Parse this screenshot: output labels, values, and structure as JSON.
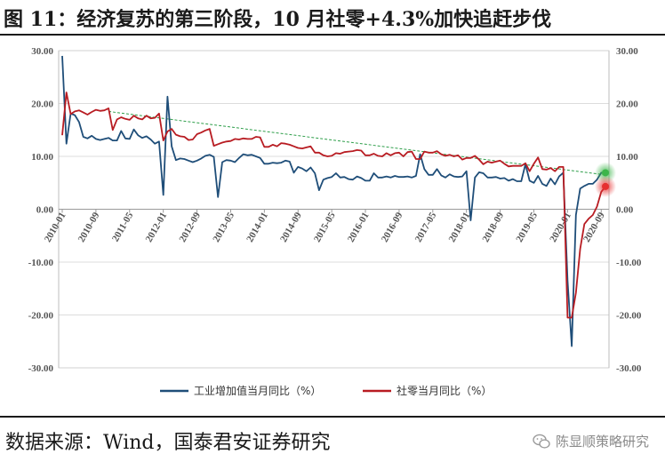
{
  "title": "图 11：经济复苏的第三阶段，10 月社零+4.3%加快追赶步伐",
  "source": "数据来源：Wind，国泰君安证券研究",
  "watermark": "陈显顺策略研究",
  "watermark_icon": "wechat-icon",
  "chart_data": {
    "type": "line",
    "ylim": [
      -30,
      30
    ],
    "yticks": [
      "30.00",
      "20.00",
      "10.00",
      "0.00",
      "-10.00",
      "-20.00",
      "-30.00"
    ],
    "right_yticks": [
      "30.00",
      "20.00",
      "10.00",
      "0.00",
      "-10.00",
      "-20.00",
      "-30.00"
    ],
    "xtick_labels": [
      "2010-01",
      "2010-09",
      "2011-05",
      "2012-01",
      "2012-09",
      "2013-05",
      "2014-01",
      "2014-09",
      "2015-05",
      "2016-01",
      "2016-09",
      "2017-05",
      "2018-01",
      "2018-09",
      "2019-05",
      "2020-01",
      "2020-09"
    ],
    "legend_position": "bottom",
    "trend_line": {
      "from": [
        "2010-12",
        18.5
      ],
      "to": [
        "2020-10",
        6.5
      ],
      "color": "#2e9e4a",
      "style": "dashed"
    },
    "highlights": [
      {
        "series": 0,
        "x": "2020-10",
        "y": 6.9,
        "color": "#3cb54a"
      },
      {
        "series": 1,
        "x": "2020-10",
        "y": 4.3,
        "color": "#e63030"
      }
    ],
    "series": [
      {
        "name": "工业增加值当月同比（%）",
        "color": "#1f4e79",
        "values": [
          [
            "2010-01",
            29.0
          ],
          [
            "2010-02",
            12.4
          ],
          [
            "2010-03",
            18.1
          ],
          [
            "2010-04",
            17.8
          ],
          [
            "2010-05",
            16.5
          ],
          [
            "2010-06",
            13.7
          ],
          [
            "2010-07",
            13.4
          ],
          [
            "2010-08",
            13.9
          ],
          [
            "2010-09",
            13.3
          ],
          [
            "2010-10",
            13.1
          ],
          [
            "2010-11",
            13.3
          ],
          [
            "2010-12",
            13.5
          ],
          [
            "2011-01",
            13.0
          ],
          [
            "2011-02",
            13.0
          ],
          [
            "2011-03",
            14.8
          ],
          [
            "2011-04",
            13.4
          ],
          [
            "2011-05",
            13.3
          ],
          [
            "2011-06",
            15.1
          ],
          [
            "2011-07",
            14.0
          ],
          [
            "2011-08",
            13.5
          ],
          [
            "2011-09",
            13.8
          ],
          [
            "2011-10",
            13.2
          ],
          [
            "2011-11",
            12.4
          ],
          [
            "2011-12",
            12.8
          ],
          [
            "2012-01",
            2.7
          ],
          [
            "2012-02",
            21.3
          ],
          [
            "2012-03",
            11.9
          ],
          [
            "2012-04",
            9.3
          ],
          [
            "2012-05",
            9.6
          ],
          [
            "2012-06",
            9.5
          ],
          [
            "2012-07",
            9.2
          ],
          [
            "2012-08",
            8.9
          ],
          [
            "2012-09",
            9.2
          ],
          [
            "2012-10",
            9.6
          ],
          [
            "2012-11",
            10.1
          ],
          [
            "2012-12",
            10.3
          ],
          [
            "2013-01",
            9.9
          ],
          [
            "2013-02",
            2.3
          ],
          [
            "2013-03",
            8.9
          ],
          [
            "2013-04",
            9.3
          ],
          [
            "2013-05",
            9.2
          ],
          [
            "2013-06",
            8.9
          ],
          [
            "2013-07",
            9.7
          ],
          [
            "2013-08",
            10.4
          ],
          [
            "2013-09",
            10.2
          ],
          [
            "2013-10",
            10.3
          ],
          [
            "2013-11",
            10.0
          ],
          [
            "2013-12",
            9.7
          ],
          [
            "2014-01",
            8.6
          ],
          [
            "2014-02",
            8.6
          ],
          [
            "2014-03",
            8.8
          ],
          [
            "2014-04",
            8.7
          ],
          [
            "2014-05",
            8.8
          ],
          [
            "2014-06",
            9.2
          ],
          [
            "2014-07",
            9.0
          ],
          [
            "2014-08",
            6.9
          ],
          [
            "2014-09",
            8.0
          ],
          [
            "2014-10",
            7.7
          ],
          [
            "2014-11",
            7.2
          ],
          [
            "2014-12",
            7.9
          ],
          [
            "2015-01",
            6.8
          ],
          [
            "2015-02",
            3.6
          ],
          [
            "2015-03",
            5.6
          ],
          [
            "2015-04",
            5.9
          ],
          [
            "2015-05",
            6.1
          ],
          [
            "2015-06",
            6.8
          ],
          [
            "2015-07",
            6.0
          ],
          [
            "2015-08",
            6.1
          ],
          [
            "2015-09",
            5.7
          ],
          [
            "2015-10",
            5.6
          ],
          [
            "2015-11",
            6.2
          ],
          [
            "2015-12",
            5.9
          ],
          [
            "2016-01",
            5.4
          ],
          [
            "2016-02",
            5.4
          ],
          [
            "2016-03",
            6.8
          ],
          [
            "2016-04",
            6.0
          ],
          [
            "2016-05",
            6.0
          ],
          [
            "2016-06",
            6.2
          ],
          [
            "2016-07",
            6.0
          ],
          [
            "2016-08",
            6.3
          ],
          [
            "2016-09",
            6.1
          ],
          [
            "2016-10",
            6.1
          ],
          [
            "2016-11",
            6.2
          ],
          [
            "2016-12",
            6.0
          ],
          [
            "2017-01",
            6.3
          ],
          [
            "2017-02",
            10.4
          ],
          [
            "2017-03",
            7.6
          ],
          [
            "2017-04",
            6.5
          ],
          [
            "2017-05",
            6.5
          ],
          [
            "2017-06",
            7.6
          ],
          [
            "2017-07",
            6.4
          ],
          [
            "2017-08",
            6.0
          ],
          [
            "2017-09",
            6.6
          ],
          [
            "2017-10",
            6.2
          ],
          [
            "2017-11",
            6.1
          ],
          [
            "2017-12",
            6.2
          ],
          [
            "2018-01",
            7.2
          ],
          [
            "2018-02",
            -2.1
          ],
          [
            "2018-03",
            6.0
          ],
          [
            "2018-04",
            7.0
          ],
          [
            "2018-05",
            6.8
          ],
          [
            "2018-06",
            6.0
          ],
          [
            "2018-07",
            6.0
          ],
          [
            "2018-08",
            6.1
          ],
          [
            "2018-09",
            5.8
          ],
          [
            "2018-10",
            5.9
          ],
          [
            "2018-11",
            5.4
          ],
          [
            "2018-12",
            5.7
          ],
          [
            "2019-01",
            5.3
          ],
          [
            "2019-02",
            5.3
          ],
          [
            "2019-03",
            8.5
          ],
          [
            "2019-04",
            5.4
          ],
          [
            "2019-05",
            5.0
          ],
          [
            "2019-06",
            6.3
          ],
          [
            "2019-07",
            4.8
          ],
          [
            "2019-08",
            4.4
          ],
          [
            "2019-09",
            5.8
          ],
          [
            "2019-10",
            4.7
          ],
          [
            "2019-11",
            6.2
          ],
          [
            "2019-12",
            6.9
          ],
          [
            "2020-01",
            -13.5
          ],
          [
            "2020-02",
            -25.9
          ],
          [
            "2020-03",
            -1.1
          ],
          [
            "2020-04",
            3.9
          ],
          [
            "2020-05",
            4.4
          ],
          [
            "2020-06",
            4.8
          ],
          [
            "2020-07",
            4.8
          ],
          [
            "2020-08",
            5.6
          ],
          [
            "2020-09",
            6.9
          ],
          [
            "2020-10",
            6.9
          ]
        ]
      },
      {
        "name": "社零当月同比（%）",
        "color": "#b81c22",
        "values": [
          [
            "2010-01",
            14.0
          ],
          [
            "2010-02",
            22.1
          ],
          [
            "2010-03",
            18.0
          ],
          [
            "2010-04",
            18.5
          ],
          [
            "2010-05",
            18.7
          ],
          [
            "2010-06",
            18.3
          ],
          [
            "2010-07",
            17.9
          ],
          [
            "2010-08",
            18.4
          ],
          [
            "2010-09",
            18.8
          ],
          [
            "2010-10",
            18.6
          ],
          [
            "2010-11",
            18.7
          ],
          [
            "2010-12",
            19.1
          ],
          [
            "2011-01",
            15.0
          ],
          [
            "2011-02",
            17.0
          ],
          [
            "2011-03",
            17.4
          ],
          [
            "2011-04",
            17.1
          ],
          [
            "2011-05",
            16.9
          ],
          [
            "2011-06",
            17.7
          ],
          [
            "2011-07",
            17.2
          ],
          [
            "2011-08",
            17.0
          ],
          [
            "2011-09",
            17.7
          ],
          [
            "2011-10",
            17.2
          ],
          [
            "2011-11",
            17.3
          ],
          [
            "2011-12",
            18.1
          ],
          [
            "2012-01",
            13.0
          ],
          [
            "2012-02",
            14.7
          ],
          [
            "2012-03",
            15.2
          ],
          [
            "2012-04",
            14.1
          ],
          [
            "2012-05",
            13.8
          ],
          [
            "2012-06",
            13.7
          ],
          [
            "2012-07",
            13.1
          ],
          [
            "2012-08",
            13.2
          ],
          [
            "2012-09",
            14.2
          ],
          [
            "2012-10",
            14.5
          ],
          [
            "2012-11",
            14.9
          ],
          [
            "2012-12",
            15.2
          ],
          [
            "2013-01",
            12.0
          ],
          [
            "2013-02",
            12.3
          ],
          [
            "2013-03",
            12.6
          ],
          [
            "2013-04",
            12.8
          ],
          [
            "2013-05",
            12.9
          ],
          [
            "2013-06",
            13.3
          ],
          [
            "2013-07",
            13.2
          ],
          [
            "2013-08",
            13.4
          ],
          [
            "2013-09",
            13.3
          ],
          [
            "2013-10",
            13.3
          ],
          [
            "2013-11",
            13.7
          ],
          [
            "2013-12",
            13.6
          ],
          [
            "2014-01",
            11.8
          ],
          [
            "2014-02",
            11.8
          ],
          [
            "2014-03",
            12.2
          ],
          [
            "2014-04",
            11.9
          ],
          [
            "2014-05",
            12.5
          ],
          [
            "2014-06",
            12.4
          ],
          [
            "2014-07",
            12.2
          ],
          [
            "2014-08",
            11.9
          ],
          [
            "2014-09",
            11.6
          ],
          [
            "2014-10",
            11.5
          ],
          [
            "2014-11",
            11.7
          ],
          [
            "2014-12",
            11.9
          ],
          [
            "2015-01",
            10.7
          ],
          [
            "2015-02",
            10.7
          ],
          [
            "2015-03",
            10.2
          ],
          [
            "2015-04",
            10.0
          ],
          [
            "2015-05",
            10.1
          ],
          [
            "2015-06",
            10.6
          ],
          [
            "2015-07",
            10.5
          ],
          [
            "2015-08",
            10.8
          ],
          [
            "2015-09",
            10.9
          ],
          [
            "2015-10",
            11.0
          ],
          [
            "2015-11",
            11.2
          ],
          [
            "2015-12",
            11.1
          ],
          [
            "2016-01",
            10.2
          ],
          [
            "2016-02",
            10.2
          ],
          [
            "2016-03",
            10.5
          ],
          [
            "2016-04",
            10.1
          ],
          [
            "2016-05",
            10.0
          ],
          [
            "2016-06",
            10.6
          ],
          [
            "2016-07",
            10.2
          ],
          [
            "2016-08",
            10.6
          ],
          [
            "2016-09",
            10.7
          ],
          [
            "2016-10",
            10.0
          ],
          [
            "2016-11",
            10.8
          ],
          [
            "2016-12",
            10.9
          ],
          [
            "2017-01",
            9.5
          ],
          [
            "2017-02",
            9.5
          ],
          [
            "2017-03",
            10.9
          ],
          [
            "2017-04",
            10.7
          ],
          [
            "2017-05",
            10.7
          ],
          [
            "2017-06",
            11.0
          ],
          [
            "2017-07",
            10.4
          ],
          [
            "2017-08",
            10.1
          ],
          [
            "2017-09",
            10.3
          ],
          [
            "2017-10",
            10.0
          ],
          [
            "2017-11",
            10.2
          ],
          [
            "2017-12",
            9.4
          ],
          [
            "2018-01",
            9.7
          ],
          [
            "2018-02",
            9.7
          ],
          [
            "2018-03",
            10.1
          ],
          [
            "2018-04",
            9.4
          ],
          [
            "2018-05",
            8.5
          ],
          [
            "2018-06",
            9.0
          ],
          [
            "2018-07",
            8.8
          ],
          [
            "2018-08",
            9.0
          ],
          [
            "2018-09",
            9.2
          ],
          [
            "2018-10",
            8.6
          ],
          [
            "2018-11",
            8.1
          ],
          [
            "2018-12",
            8.2
          ],
          [
            "2019-01",
            8.2
          ],
          [
            "2019-02",
            8.2
          ],
          [
            "2019-03",
            8.7
          ],
          [
            "2019-04",
            7.2
          ],
          [
            "2019-05",
            8.6
          ],
          [
            "2019-06",
            9.8
          ],
          [
            "2019-07",
            7.6
          ],
          [
            "2019-08",
            7.5
          ],
          [
            "2019-09",
            7.8
          ],
          [
            "2019-10",
            7.2
          ],
          [
            "2019-11",
            8.0
          ],
          [
            "2019-12",
            8.0
          ],
          [
            "2020-01",
            -20.5
          ],
          [
            "2020-02",
            -20.5
          ],
          [
            "2020-03",
            -15.8
          ],
          [
            "2020-04",
            -7.5
          ],
          [
            "2020-05",
            -2.8
          ],
          [
            "2020-06",
            -1.8
          ],
          [
            "2020-07",
            -1.1
          ],
          [
            "2020-08",
            0.5
          ],
          [
            "2020-09",
            3.3
          ],
          [
            "2020-10",
            4.3
          ]
        ]
      }
    ]
  }
}
